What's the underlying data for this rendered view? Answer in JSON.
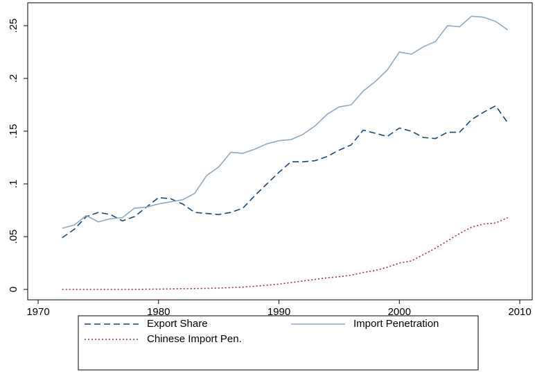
{
  "chart_data": {
    "type": "line",
    "x": [
      1972,
      1973,
      1974,
      1975,
      1976,
      1977,
      1978,
      1979,
      1980,
      1981,
      1982,
      1983,
      1984,
      1985,
      1986,
      1987,
      1988,
      1989,
      1990,
      1991,
      1992,
      1993,
      1994,
      1995,
      1996,
      1997,
      1998,
      1999,
      2000,
      2001,
      2002,
      2003,
      2004,
      2005,
      2006,
      2007,
      2008,
      2009
    ],
    "series": [
      {
        "name": "Export Share",
        "color": "#1a476f",
        "dash": "dashed",
        "values": [
          0.049,
          0.057,
          0.069,
          0.073,
          0.071,
          0.065,
          0.069,
          0.078,
          0.087,
          0.086,
          0.081,
          0.073,
          0.072,
          0.071,
          0.073,
          0.077,
          0.089,
          0.1,
          0.111,
          0.121,
          0.121,
          0.122,
          0.126,
          0.132,
          0.137,
          0.151,
          0.148,
          0.145,
          0.153,
          0.15,
          0.144,
          0.143,
          0.149,
          0.149,
          0.161,
          0.168,
          0.174,
          0.158
        ]
      },
      {
        "name": "Import Penetration",
        "color": "#90a8c0",
        "dash": "solid",
        "values": [
          0.058,
          0.061,
          0.07,
          0.064,
          0.067,
          0.068,
          0.077,
          0.078,
          0.081,
          0.083,
          0.085,
          0.091,
          0.108,
          0.116,
          0.13,
          0.129,
          0.133,
          0.138,
          0.141,
          0.142,
          0.147,
          0.155,
          0.166,
          0.173,
          0.175,
          0.188,
          0.197,
          0.208,
          0.225,
          0.223,
          0.23,
          0.235,
          0.25,
          0.249,
          0.259,
          0.258,
          0.254,
          0.246
        ]
      },
      {
        "name": "Chinese Import Pen.",
        "color": "#90353b",
        "dash": "dotted",
        "values": [
          0,
          0,
          0,
          0,
          0,
          0,
          0,
          0.0002,
          0.0003,
          0.0005,
          0.0007,
          0.0008,
          0.001,
          0.0013,
          0.0017,
          0.0022,
          0.003,
          0.004,
          0.005,
          0.0065,
          0.008,
          0.0095,
          0.011,
          0.012,
          0.0135,
          0.016,
          0.018,
          0.021,
          0.025,
          0.027,
          0.033,
          0.039,
          0.046,
          0.053,
          0.059,
          0.062,
          0.063,
          0.068
        ]
      }
    ],
    "xlim": [
      1970,
      2010
    ],
    "xticks": [
      1970,
      1980,
      1990,
      2000,
      2010
    ],
    "ylim": [
      0,
      0.25
    ],
    "yticks": [
      0,
      {
        "value": 0.05,
        "label": ".05"
      },
      {
        "value": 0.1,
        "label": ".1"
      },
      {
        "value": 0.15,
        "label": ".15"
      },
      {
        "value": 0.2,
        "label": ".2"
      },
      {
        "value": 0.25,
        "label": ".25"
      }
    ],
    "grid": false,
    "legend": "bottom"
  }
}
